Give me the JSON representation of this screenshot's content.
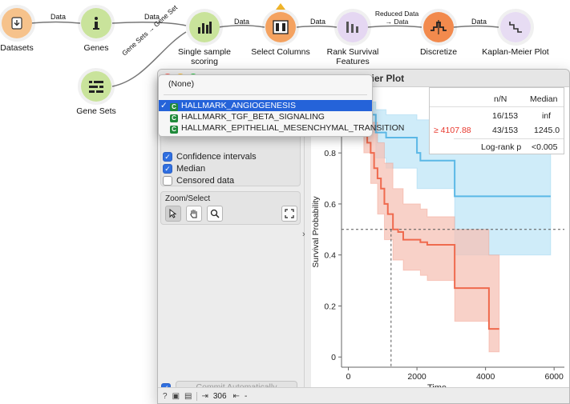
{
  "workflow": {
    "nodes": [
      {
        "id": "datasets",
        "label": "Datasets",
        "color": "#f6c28b",
        "icon": "datasets-icon"
      },
      {
        "id": "genes",
        "label": "Genes",
        "color": "#c9e39b",
        "icon": "info-icon"
      },
      {
        "id": "gene_sets",
        "label": "Gene Sets",
        "color": "#c9e39b",
        "icon": "gene-sets-icon"
      },
      {
        "id": "single_sample",
        "label": "Single sample scoring",
        "color": "#c9e39b",
        "icon": "bar-chart-icon"
      },
      {
        "id": "select_columns",
        "label": "Select Columns",
        "color": "#f4a260",
        "icon": "select-columns-icon"
      },
      {
        "id": "rank_survival",
        "label": "Rank Survival\nFeatures",
        "color": "#e5d7f2",
        "icon": "rank-icon"
      },
      {
        "id": "discretize",
        "label": "Discretize",
        "color": "#f28a4d",
        "icon": "discretize-icon"
      },
      {
        "id": "km_plot",
        "label": "Kaplan-Meier Plot",
        "color": "#e7dcf3",
        "icon": "km-plot-icon"
      }
    ],
    "edges": [
      {
        "label": "Data"
      },
      {
        "label": "Data"
      },
      {
        "label": "Gene Sets → Gene Set"
      },
      {
        "label": "Data"
      },
      {
        "label": "Data"
      },
      {
        "label": "Reduced Data → Data"
      },
      {
        "label": "Data"
      }
    ]
  },
  "window": {
    "title": "Kaplan-Meier Plot",
    "dropdown": {
      "items": [
        {
          "label": "(None)"
        },
        {
          "label": "HALLMARK_ANGIOGENESIS",
          "selected": true
        },
        {
          "label": "HALLMARK_TGF_BETA_SIGNALING"
        },
        {
          "label": "HALLMARK_EPITHELIAL_MESENCHYMAL_TRANSITION"
        }
      ],
      "selected_mark": "✓"
    },
    "checkboxes": [
      {
        "label": "Confidence intervals",
        "checked": true
      },
      {
        "label": "Median",
        "checked": true
      },
      {
        "label": "Censored data",
        "checked": false
      }
    ],
    "zoom_select_title": "Zoom/Select",
    "commit": {
      "label": "Commit Automatically",
      "checked": true
    },
    "status": {
      "rows": "306",
      "output": "-"
    },
    "stats_table": {
      "headers": [
        "",
        "n/N",
        "Median"
      ],
      "rows": [
        {
          "group": "",
          "nN": "16/153",
          "median": "inf",
          "color": "#222222"
        },
        {
          "group": "≥ 4107.88",
          "nN": "43/153",
          "median": "1245.0",
          "color": "#e8372c"
        }
      ],
      "logrank_label": "Log-rank p",
      "logrank_value": "<0.005"
    }
  },
  "chart_data": {
    "type": "line",
    "xlabel": "Time",
    "ylabel": "Survival Probability",
    "xlim": [
      -200,
      6300
    ],
    "ylim": [
      -0.04,
      1.02
    ],
    "x_ticks": [
      0,
      2000,
      4000,
      6000
    ],
    "y_ticks": [
      0,
      0.2,
      0.4,
      0.6,
      0.8
    ],
    "median_line": {
      "y": 0.5,
      "x": 1245
    },
    "series": [
      {
        "color": "#5bb8e6",
        "ci_color": "#bfe6f7",
        "steps": [
          [
            0,
            1.0
          ],
          [
            400,
            0.95
          ],
          [
            800,
            0.88
          ],
          [
            1100,
            0.86
          ],
          [
            2000,
            0.8
          ],
          [
            2100,
            0.77
          ],
          [
            3100,
            0.68
          ],
          [
            3100,
            0.63
          ],
          [
            5900,
            0.63
          ]
        ],
        "upper": [
          [
            0,
            1.0
          ],
          [
            400,
            1.0
          ],
          [
            800,
            0.97
          ],
          [
            1100,
            0.95
          ],
          [
            2000,
            0.93
          ],
          [
            3100,
            0.86
          ],
          [
            5900,
            0.86
          ]
        ],
        "lower": [
          [
            0,
            1.0
          ],
          [
            400,
            0.88
          ],
          [
            800,
            0.78
          ],
          [
            1100,
            0.74
          ],
          [
            2000,
            0.66
          ],
          [
            3100,
            0.4
          ],
          [
            5900,
            0.4
          ]
        ]
      },
      {
        "color": "#ef6a4e",
        "ci_color": "#f6c1b5",
        "steps": [
          [
            0,
            1.0
          ],
          [
            250,
            0.95
          ],
          [
            450,
            0.9
          ],
          [
            550,
            0.84
          ],
          [
            650,
            0.8
          ],
          [
            750,
            0.74
          ],
          [
            850,
            0.7
          ],
          [
            950,
            0.66
          ],
          [
            1050,
            0.6
          ],
          [
            1150,
            0.56
          ],
          [
            1300,
            0.5
          ],
          [
            1450,
            0.49
          ],
          [
            1600,
            0.46
          ],
          [
            2100,
            0.45
          ],
          [
            2300,
            0.44
          ],
          [
            3100,
            0.4
          ],
          [
            3100,
            0.27
          ],
          [
            4100,
            0.27
          ],
          [
            4100,
            0.11
          ],
          [
            4400,
            0.11
          ]
        ],
        "upper": [
          [
            0,
            1.0
          ],
          [
            250,
            1.0
          ],
          [
            450,
            0.98
          ],
          [
            650,
            0.92
          ],
          [
            850,
            0.84
          ],
          [
            1050,
            0.76
          ],
          [
            1300,
            0.66
          ],
          [
            1600,
            0.6
          ],
          [
            2100,
            0.58
          ],
          [
            2300,
            0.55
          ],
          [
            3100,
            0.5
          ],
          [
            4100,
            0.4
          ],
          [
            4400,
            0.4
          ]
        ],
        "lower": [
          [
            0,
            1.0
          ],
          [
            250,
            0.88
          ],
          [
            450,
            0.8
          ],
          [
            650,
            0.68
          ],
          [
            850,
            0.56
          ],
          [
            1050,
            0.46
          ],
          [
            1300,
            0.38
          ],
          [
            1600,
            0.34
          ],
          [
            2100,
            0.32
          ],
          [
            2300,
            0.3
          ],
          [
            3100,
            0.14
          ],
          [
            4100,
            0.02
          ],
          [
            4400,
            0.02
          ]
        ]
      }
    ]
  }
}
